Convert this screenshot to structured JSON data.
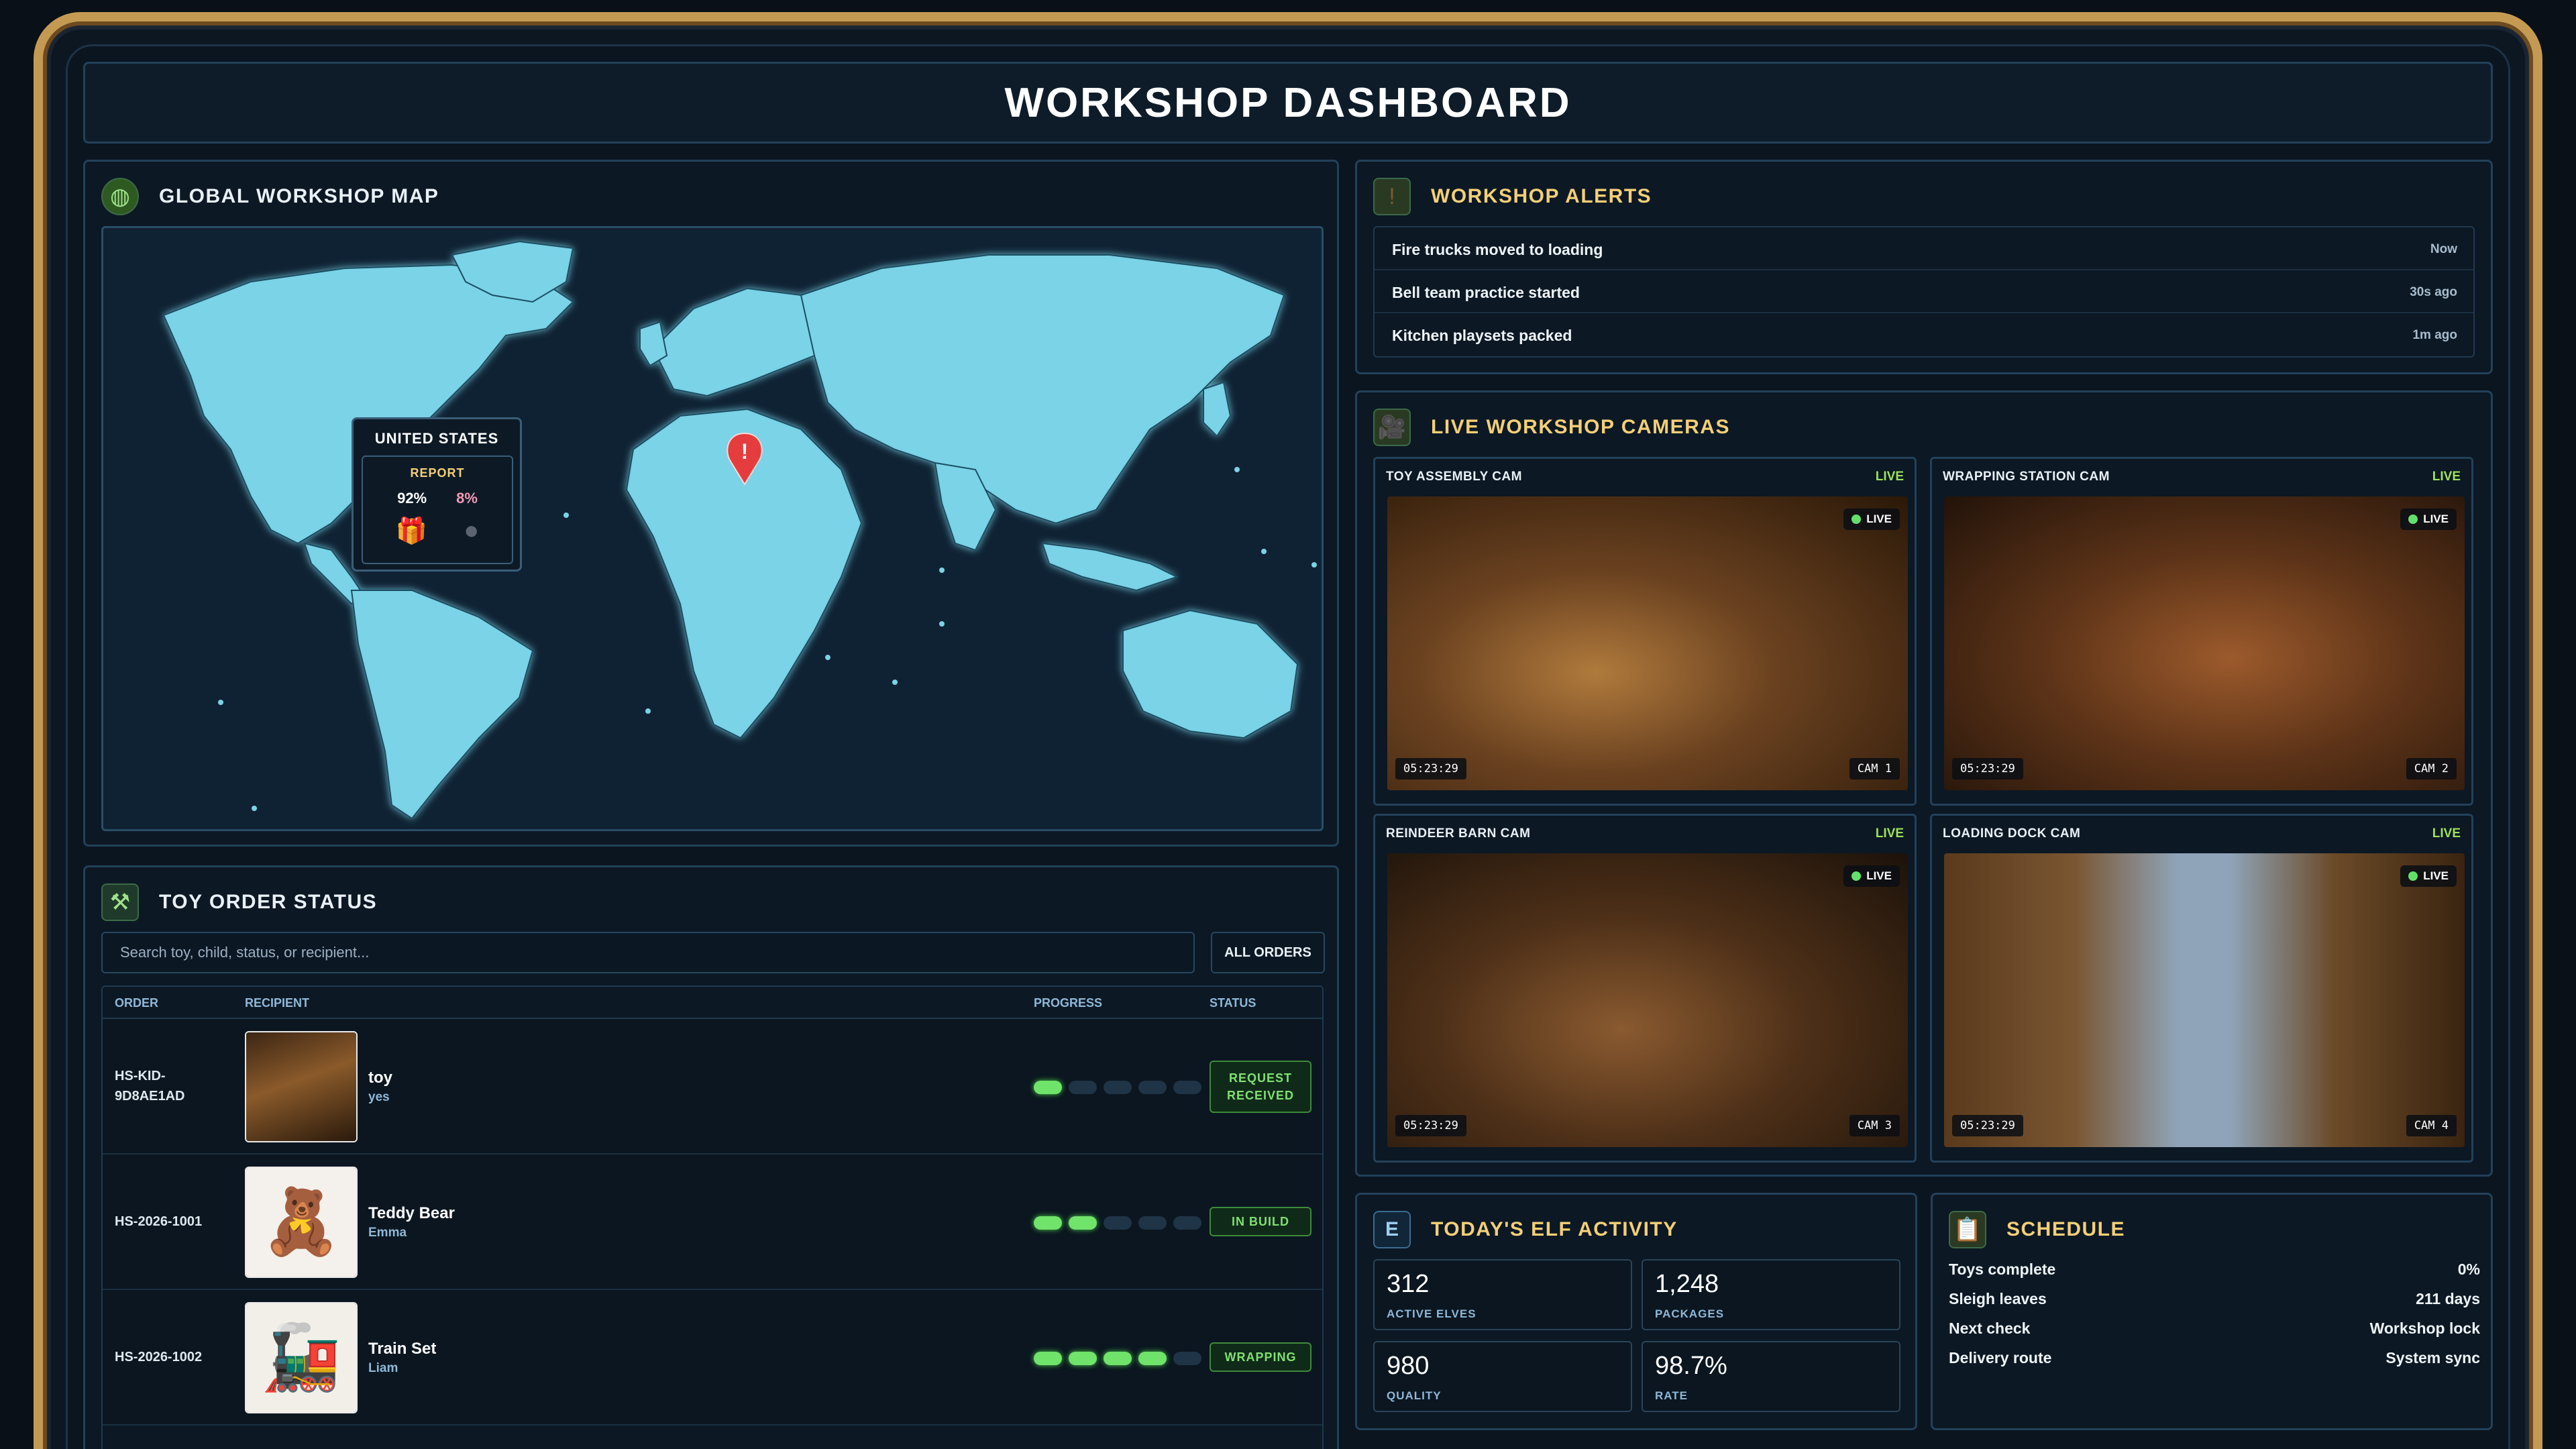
{
  "dashboard_title": "WORKSHOP DASHBOARD",
  "map": {
    "title": "GLOBAL WORKSHOP MAP",
    "icon": "globe-icon",
    "tooltip": {
      "country": "UNITED STATES",
      "report_label": "REPORT",
      "nice_pct": "92%",
      "naughty_pct": "8%",
      "nice_icon": "gift-icon",
      "naughty_icon": "coal-icon"
    },
    "marker_icon": "alert-pin-icon"
  },
  "orders": {
    "title": "TOY ORDER STATUS",
    "icon": "hammer-icon",
    "search_placeholder": "Search toy, child, status, or recipient...",
    "filter_label": "ALL ORDERS",
    "columns": {
      "order": "ORDER",
      "recipient": "RECIPIENT",
      "progress": "PROGRESS",
      "status": "STATUS"
    },
    "rows": [
      {
        "id": "HS-KID-9D8AE1AD",
        "name": "toy",
        "sub": "yes",
        "progress_steps": 1,
        "status": "REQUEST RECEIVED",
        "thumb": "workshop-image"
      },
      {
        "id": "HS-2026-1001",
        "name": "Teddy Bear",
        "sub": "Emma",
        "progress_steps": 2,
        "status": "IN BUILD",
        "thumb": "teddy-bear-image"
      },
      {
        "id": "HS-2026-1002",
        "name": "Train Set",
        "sub": "Liam",
        "progress_steps": 4,
        "status": "WRAPPING",
        "thumb": "train-set-image"
      }
    ]
  },
  "alerts": {
    "title": "WORKSHOP ALERTS",
    "icon": "exclamation-icon",
    "items": [
      {
        "message": "Fire trucks moved to loading",
        "time": "Now"
      },
      {
        "message": "Bell team practice started",
        "time": "30s ago"
      },
      {
        "message": "Kitchen playsets packed",
        "time": "1m ago"
      }
    ]
  },
  "cameras": {
    "title": "LIVE WORKSHOP CAMERAS",
    "icon": "camera-icon",
    "feeds": [
      {
        "name": "TOY ASSEMBLY CAM",
        "live": "LIVE",
        "pill": "LIVE",
        "timestamp": "05:23:29",
        "cam": "CAM 1"
      },
      {
        "name": "WRAPPING STATION CAM",
        "live": "LIVE",
        "pill": "LIVE",
        "timestamp": "05:23:29",
        "cam": "CAM 2"
      },
      {
        "name": "REINDEER BARN CAM",
        "live": "LIVE",
        "pill": "LIVE",
        "timestamp": "05:23:29",
        "cam": "CAM 3"
      },
      {
        "name": "LOADING DOCK CAM",
        "live": "LIVE",
        "pill": "LIVE",
        "timestamp": "05:23:29",
        "cam": "CAM 4"
      }
    ]
  },
  "activity": {
    "title": "TODAY'S ELF ACTIVITY",
    "icon_letter": "E",
    "stats": [
      {
        "value": "312",
        "label": "ACTIVE ELVES"
      },
      {
        "value": "1,248",
        "label": "PACKAGES"
      },
      {
        "value": "980",
        "label": "QUALITY"
      },
      {
        "value": "98.7%",
        "label": "RATE"
      }
    ]
  },
  "schedule": {
    "title": "SCHEDULE",
    "icon": "clipboard-icon",
    "rows": [
      {
        "key": "Toys complete",
        "value": "0%"
      },
      {
        "key": "Sleigh leaves",
        "value": "211 days"
      },
      {
        "key": "Next check",
        "value": "Workshop lock"
      },
      {
        "key": "Delivery route",
        "value": "System sync"
      }
    ]
  },
  "colors": {
    "accent_gold": "#f3cf76",
    "progress_green": "#6fe36a",
    "map_land": "#7ad3e6",
    "frame_gold": "#c49a52"
  }
}
